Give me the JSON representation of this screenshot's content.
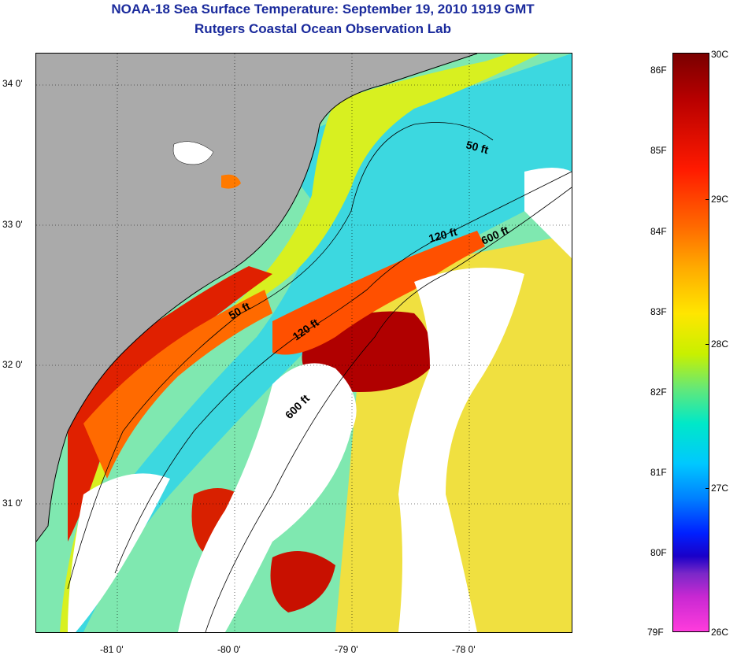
{
  "title": {
    "line1": "NOAA-18 Sea Surface Temperature:  September 19, 2010 1919 GMT",
    "line2": "Rutgers Coastal Ocean Observation Lab"
  },
  "map": {
    "longitude_labels": [
      "-81 0'",
      "-80 0'",
      "-79 0'",
      "-78 0'"
    ],
    "latitude_labels": [
      "34 0'",
      "33 0'",
      "32 0'",
      "31 0'"
    ],
    "contour_labels": [
      "50 ft",
      "120 ft",
      "600 ft",
      "50 ft",
      "120 ft",
      "600 ft"
    ],
    "colors": {
      "land": "#aaaaaa",
      "cloud": "#ffffff",
      "warm": "#c80000",
      "cool": "#20c8ff"
    }
  },
  "colorbar": {
    "fahrenheit_labels": [
      "86F",
      "85F",
      "84F",
      "83F",
      "82F",
      "81F",
      "80F",
      "79F"
    ],
    "celsius_labels": [
      "30C",
      "29C",
      "28C",
      "27C",
      "26C"
    ]
  }
}
